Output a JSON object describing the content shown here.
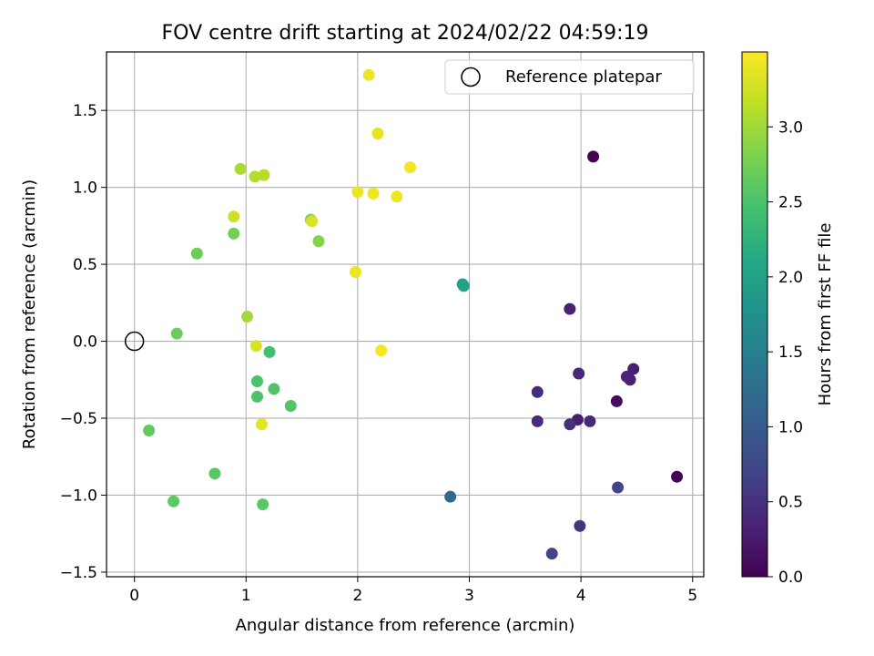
{
  "chart_data": {
    "type": "scatter",
    "title": "FOV centre drift starting at 2024/02/22 04:59:19",
    "xlabel": "Angular distance from reference (arcmin)",
    "ylabel": "Rotation from reference (arcmin)",
    "xlim": [
      -0.25,
      5.1
    ],
    "ylim": [
      -1.53,
      1.88
    ],
    "xticks": [
      0,
      1,
      2,
      3,
      4,
      5
    ],
    "xtick_labels": [
      "0",
      "1",
      "2",
      "3",
      "4",
      "5"
    ],
    "yticks": [
      -1.5,
      -1.0,
      -0.5,
      0.0,
      0.5,
      1.0,
      1.5
    ],
    "ytick_labels": [
      "−1.5",
      "−1.0",
      "−0.5",
      "0.0",
      "0.5",
      "1.0",
      "1.5"
    ],
    "grid": true,
    "legend": {
      "position": "top-right",
      "entries": [
        "Reference platepar"
      ]
    },
    "reference_point": {
      "x": 0,
      "y": 0
    },
    "colorbar": {
      "label": "Hours from first FF file",
      "colormap": "viridis",
      "range": [
        0,
        3.5
      ],
      "ticks": [
        0.0,
        0.5,
        1.0,
        1.5,
        2.0,
        2.5,
        3.0
      ],
      "tick_labels": [
        "0.0",
        "0.5",
        "1.0",
        "1.5",
        "2.0",
        "2.5",
        "3.0"
      ]
    },
    "points": [
      {
        "x": 4.11,
        "y": 1.2,
        "c": 0.02
      },
      {
        "x": 4.86,
        "y": -0.88,
        "c": 0.05
      },
      {
        "x": 4.32,
        "y": -0.39,
        "c": 0.1
      },
      {
        "x": 4.47,
        "y": -0.18,
        "c": 0.3
      },
      {
        "x": 4.44,
        "y": -0.25,
        "c": 0.33
      },
      {
        "x": 4.41,
        "y": -0.23,
        "c": 0.36
      },
      {
        "x": 3.9,
        "y": 0.21,
        "c": 0.32
      },
      {
        "x": 3.98,
        "y": -0.21,
        "c": 0.38
      },
      {
        "x": 3.97,
        "y": -0.51,
        "c": 0.28
      },
      {
        "x": 4.08,
        "y": -0.52,
        "c": 0.4
      },
      {
        "x": 3.9,
        "y": -0.54,
        "c": 0.48
      },
      {
        "x": 3.61,
        "y": -0.52,
        "c": 0.43
      },
      {
        "x": 3.61,
        "y": -0.33,
        "c": 0.45
      },
      {
        "x": 3.99,
        "y": -1.2,
        "c": 0.52
      },
      {
        "x": 4.33,
        "y": -0.95,
        "c": 0.7
      },
      {
        "x": 3.74,
        "y": -1.38,
        "c": 0.72
      },
      {
        "x": 2.83,
        "y": -1.01,
        "c": 1.2
      },
      {
        "x": 2.94,
        "y": 0.37,
        "c": 1.95
      },
      {
        "x": 2.95,
        "y": 0.36,
        "c": 2.0
      },
      {
        "x": 1.21,
        "y": -0.07,
        "c": 2.45
      },
      {
        "x": 1.1,
        "y": -0.26,
        "c": 2.5
      },
      {
        "x": 1.25,
        "y": -0.31,
        "c": 2.52
      },
      {
        "x": 1.1,
        "y": -0.36,
        "c": 2.5
      },
      {
        "x": 1.4,
        "y": -0.42,
        "c": 2.55
      },
      {
        "x": 1.15,
        "y": -1.06,
        "c": 2.58
      },
      {
        "x": 0.72,
        "y": -0.86,
        "c": 2.6
      },
      {
        "x": 0.35,
        "y": -1.04,
        "c": 2.62
      },
      {
        "x": 0.13,
        "y": -0.58,
        "c": 2.65
      },
      {
        "x": 0.38,
        "y": 0.05,
        "c": 2.7
      },
      {
        "x": 0.56,
        "y": 0.57,
        "c": 2.72
      },
      {
        "x": 0.89,
        "y": 0.7,
        "c": 2.75
      },
      {
        "x": 1.65,
        "y": 0.65,
        "c": 2.85
      },
      {
        "x": 1.58,
        "y": 0.79,
        "c": 2.8
      },
      {
        "x": 1.01,
        "y": 0.16,
        "c": 3.0
      },
      {
        "x": 0.95,
        "y": 1.12,
        "c": 3.05
      },
      {
        "x": 1.08,
        "y": 1.07,
        "c": 3.1
      },
      {
        "x": 1.16,
        "y": 1.08,
        "c": 3.1
      },
      {
        "x": 0.89,
        "y": 0.81,
        "c": 3.25
      },
      {
        "x": 1.59,
        "y": 0.78,
        "c": 3.3
      },
      {
        "x": 1.09,
        "y": -0.03,
        "c": 3.28
      },
      {
        "x": 1.14,
        "y": -0.54,
        "c": 3.35
      },
      {
        "x": 1.98,
        "y": 0.45,
        "c": 3.4
      },
      {
        "x": 2.0,
        "y": 0.97,
        "c": 3.4
      },
      {
        "x": 2.14,
        "y": 0.96,
        "c": 3.42
      },
      {
        "x": 2.35,
        "y": 0.94,
        "c": 3.42
      },
      {
        "x": 2.18,
        "y": 1.35,
        "c": 3.38
      },
      {
        "x": 2.47,
        "y": 1.13,
        "c": 3.45
      },
      {
        "x": 2.1,
        "y": 1.73,
        "c": 3.4
      },
      {
        "x": 2.21,
        "y": -0.06,
        "c": 3.45
      }
    ]
  }
}
